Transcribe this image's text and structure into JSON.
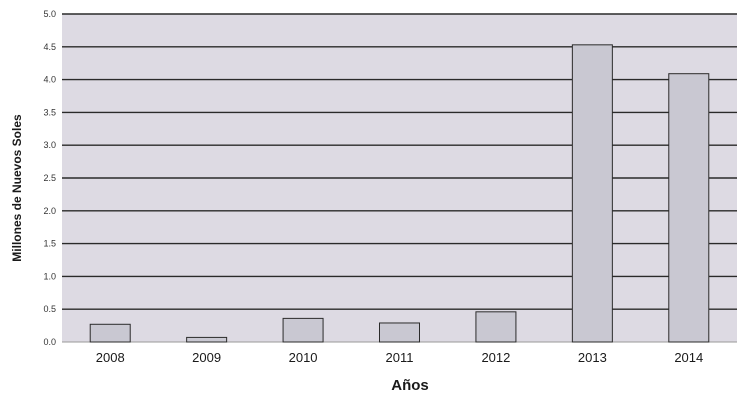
{
  "chart_data": {
    "type": "bar",
    "title": "",
    "xlabel": "Años",
    "ylabel": "Millones de Nuevos Soles",
    "categories": [
      "2008",
      "2009",
      "2010",
      "2011",
      "2012",
      "2013",
      "2014"
    ],
    "values": [
      0.27,
      0.07,
      0.36,
      0.29,
      0.46,
      4.53,
      4.09
    ],
    "ylim": [
      0,
      5.0
    ],
    "yticks": [
      "0.0",
      "0.5",
      "1.0",
      "1.5",
      "2.0",
      "2.5",
      "3.0",
      "3.5",
      "4.0",
      "4.5",
      "5.0"
    ],
    "grid": true,
    "legend": "none",
    "colors": {
      "plot_background": "#dddae3",
      "bar_fill": "#c9c8d2",
      "bar_stroke": "#2b2b2b",
      "gridline": "#2a2a2a"
    }
  }
}
